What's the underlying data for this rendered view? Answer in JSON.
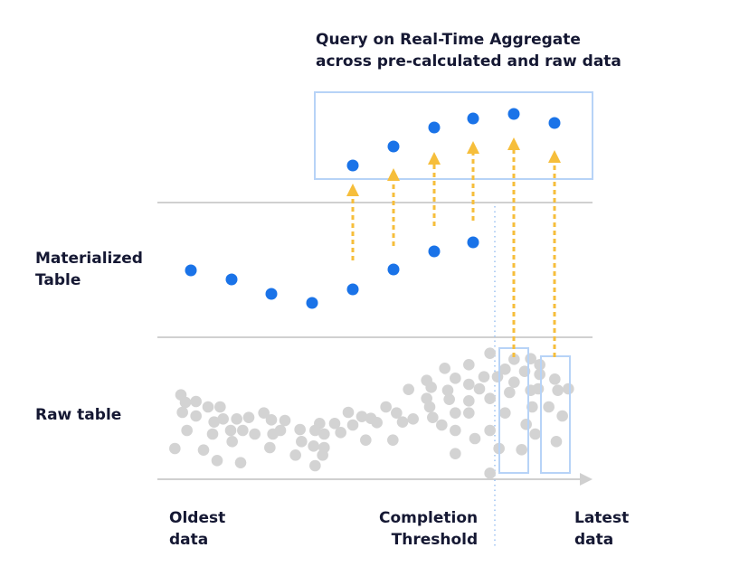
{
  "title": {
    "line1": "Query on Real-Time Aggregate",
    "line2": "across pre-calculated and raw data"
  },
  "rows": {
    "materialized_line1": "Materialized",
    "materialized_line2": "Table",
    "raw": "Raw table"
  },
  "axis": {
    "oldest_line1": "Oldest",
    "oldest_line2": "data",
    "threshold_line1": "Completion",
    "threshold_line2": "Threshold",
    "latest_line1": "Latest",
    "latest_line2": "data"
  },
  "colors": {
    "text": "#151833",
    "blue_dot": "#1a73e8",
    "box_outline": "#b7d3f7",
    "arrow": "#f6be3b",
    "raw_dot": "#d3d3d3",
    "divider": "#d0d0d0",
    "threshold_line": "#9cc2f2"
  }
}
